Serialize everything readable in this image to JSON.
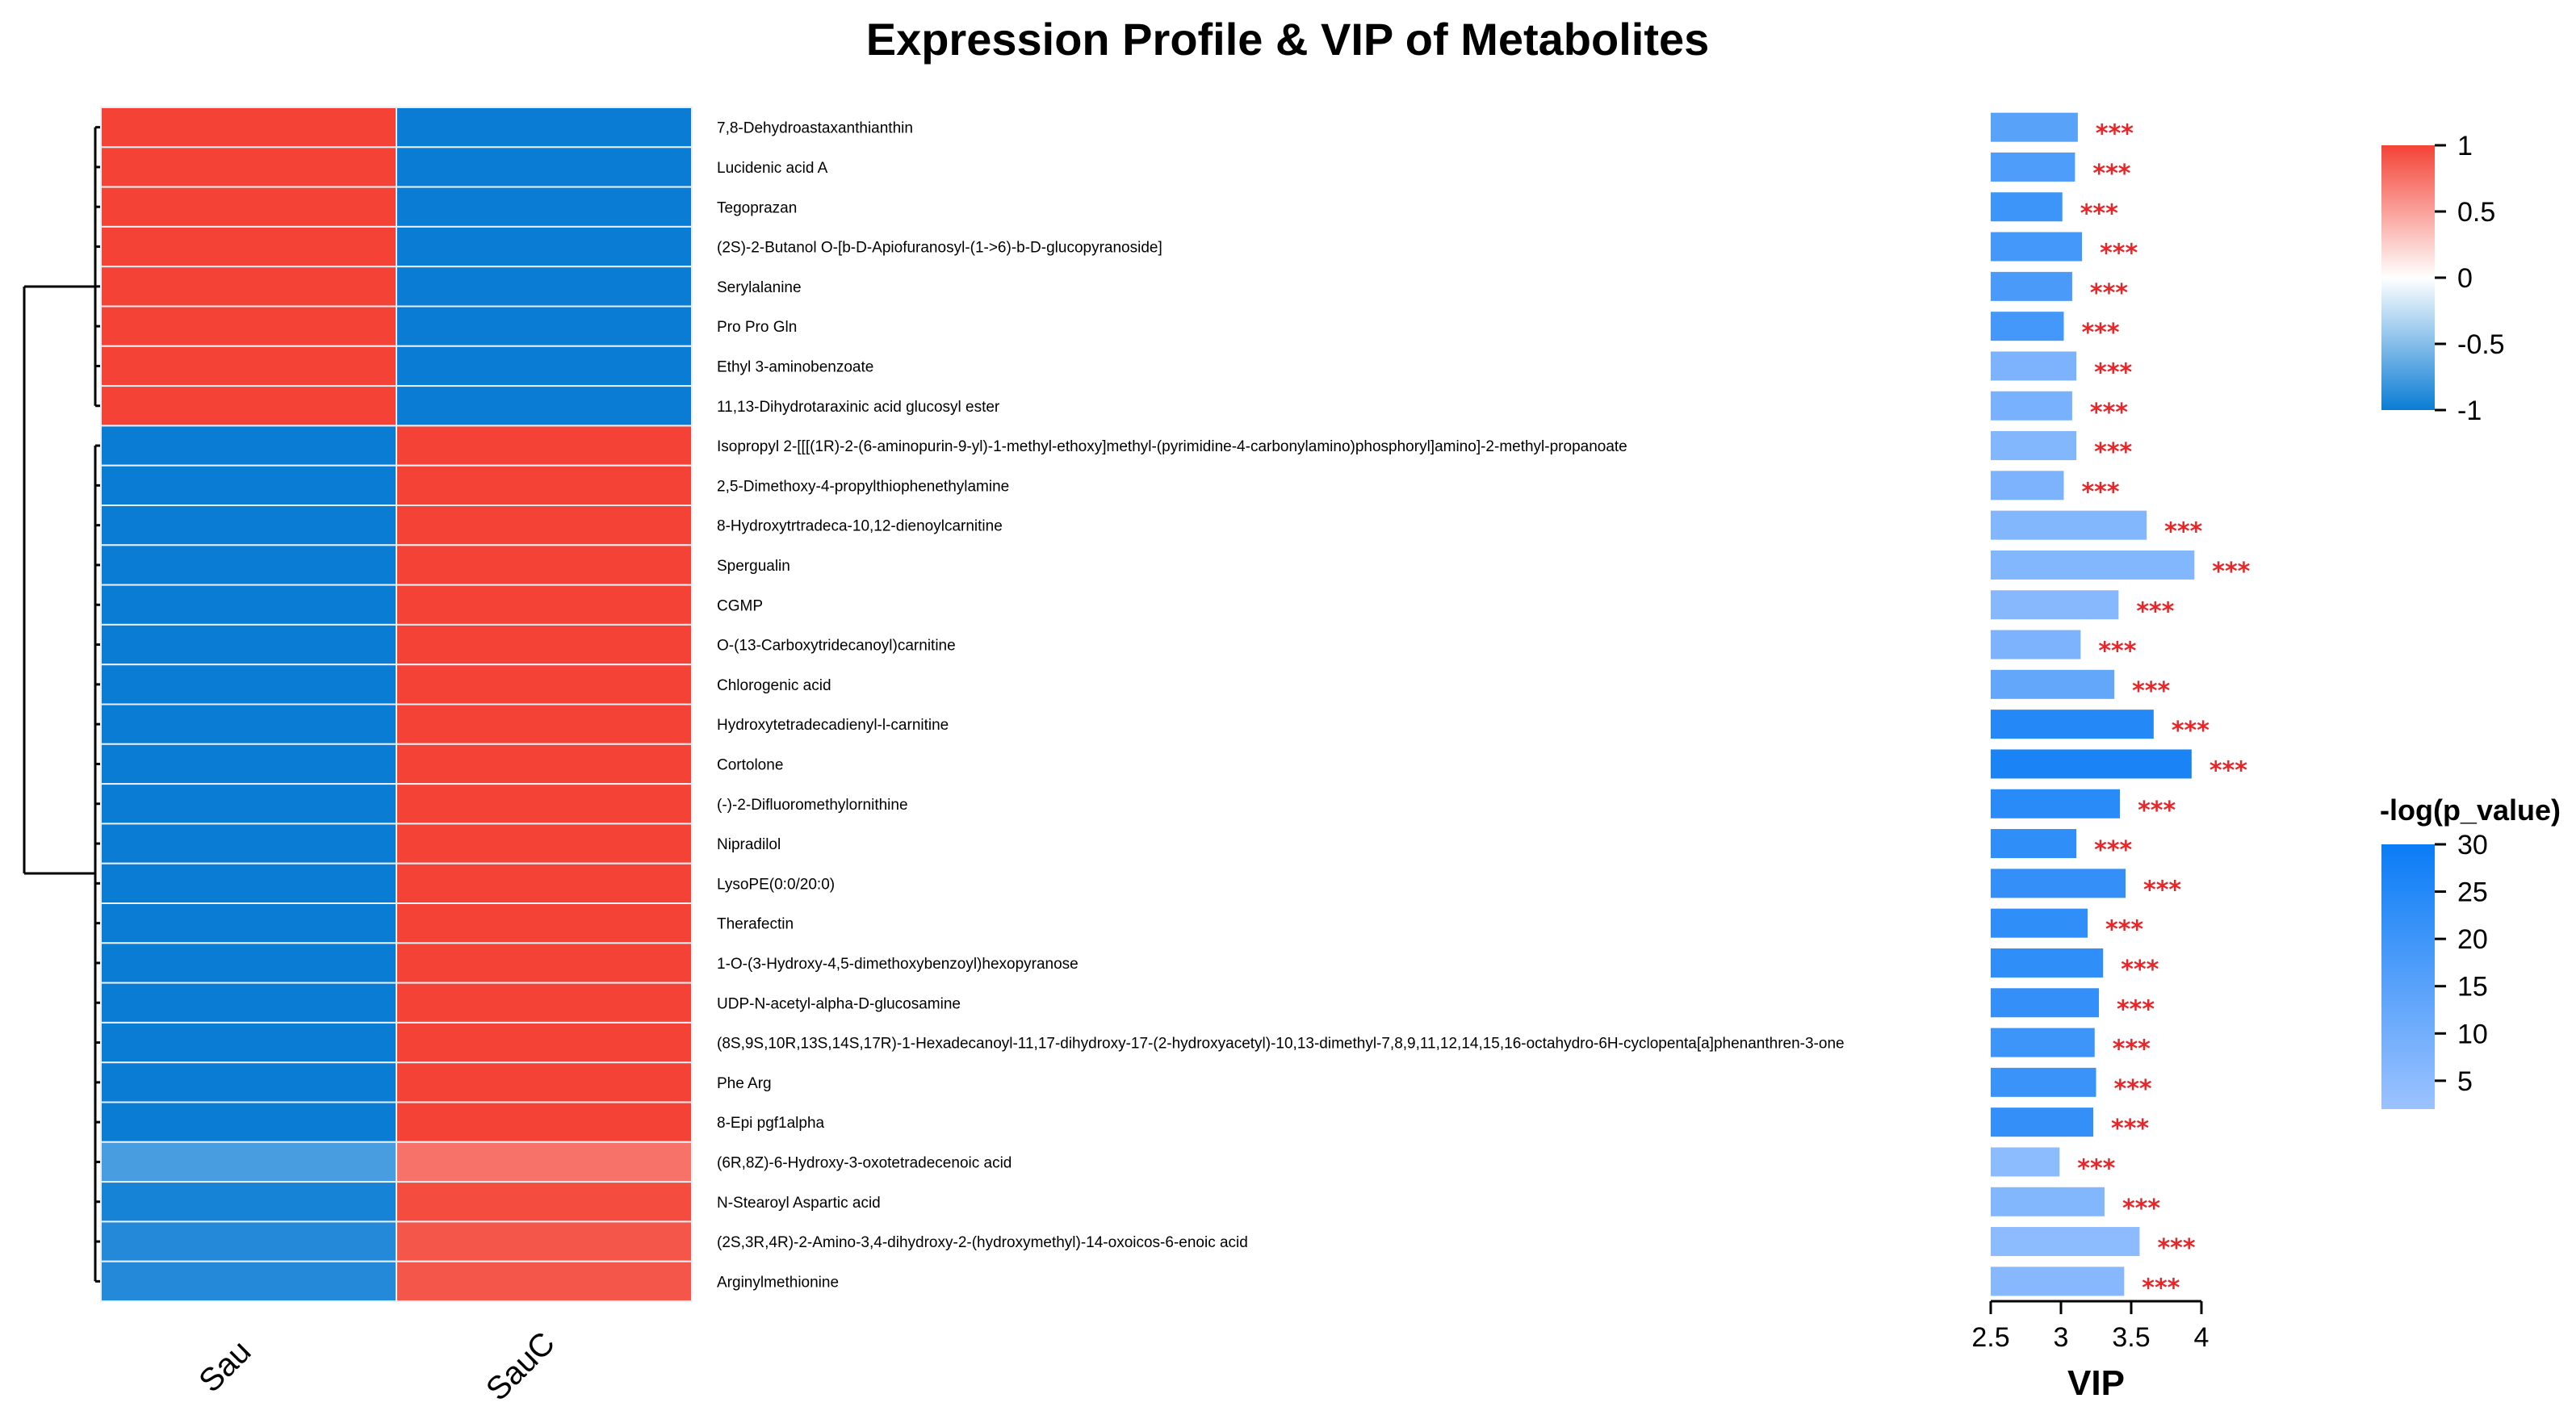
{
  "chart_data": {
    "type": "heatmap",
    "title": "Expression Profile & VIP of Metabolites",
    "groups": [
      "Sau",
      "SauC"
    ],
    "metabolites": [
      "7,8-Dehydroastaxanthianthin",
      "Lucidenic acid A",
      "Tegoprazan",
      "(2S)-2-Butanol O-[b-D-Apiofuranosyl-(1->6)-b-D-glucopyranoside]",
      "Serylalanine",
      "Pro Pro Gln",
      "Ethyl 3-aminobenzoate",
      "11,13-Dihydrotaraxinic acid glucosyl ester",
      "Isopropyl 2-[[[(1R)-2-(6-aminopurin-9-yl)-1-methyl-ethoxy]methyl-(pyrimidine-4-carbonylamino)phosphoryl]amino]-2-methyl-propanoate",
      "2,5-Dimethoxy-4-propylthiophenethylamine",
      "8-Hydroxytrtradeca-10,12-dienoylcarnitine",
      "Spergualin",
      "CGMP",
      "O-(13-Carboxytridecanoyl)carnitine",
      "Chlorogenic acid",
      "Hydroxytetradecadienyl-l-carnitine",
      "Cortolone",
      "(-)-2-Difluoromethylornithine",
      "Nipradilol",
      "LysoPE(0:0/20:0)",
      "Therafectin",
      "1-O-(3-Hydroxy-4,5-dimethoxybenzoyl)hexopyranose",
      "UDP-N-acetyl-alpha-D-glucosamine",
      "(8S,9S,10R,13S,14S,17R)-1-Hexadecanoyl-11,17-dihydroxy-17-(2-hydroxyacetyl)-10,13-dimethyl-7,8,9,11,12,14,15,16-octahydro-6H-cyclopenta[a]phenanthren-3-one",
      "Phe Arg",
      "8-Epi pgf1alpha",
      "(6R,8Z)-6-Hydroxy-3-oxotetradecenoic acid",
      "N-Stearoyl Aspartic acid",
      "(2S,3R,4R)-2-Amino-3,4-dihydroxy-2-(hydroxymethyl)-14-oxoicos-6-enoic acid",
      "Arginylmethionine"
    ],
    "heatmap_values": [
      [
        1,
        -1
      ],
      [
        1,
        -1
      ],
      [
        1,
        -1
      ],
      [
        1,
        -1
      ],
      [
        1,
        -1
      ],
      [
        1,
        -1
      ],
      [
        1,
        -1
      ],
      [
        1,
        -1
      ],
      [
        -1,
        1
      ],
      [
        -1,
        1
      ],
      [
        -1,
        1
      ],
      [
        -1,
        1
      ],
      [
        -1,
        1
      ],
      [
        -1,
        1
      ],
      [
        -1,
        1
      ],
      [
        -1,
        1
      ],
      [
        -1,
        1
      ],
      [
        -1,
        1
      ],
      [
        -1,
        1
      ],
      [
        -1,
        1
      ],
      [
        -1,
        1
      ],
      [
        -1,
        1
      ],
      [
        -1,
        1
      ],
      [
        -1,
        1
      ],
      [
        -1,
        1
      ],
      [
        -1,
        1
      ],
      [
        -0.75,
        0.75
      ],
      [
        -0.95,
        0.95
      ],
      [
        -0.9,
        0.9
      ],
      [
        -0.9,
        0.9
      ]
    ],
    "vip": [
      3.12,
      3.1,
      3.01,
      3.15,
      3.08,
      3.02,
      3.11,
      3.08,
      3.11,
      3.02,
      3.61,
      3.95,
      3.41,
      3.14,
      3.38,
      3.66,
      3.93,
      3.42,
      3.11,
      3.46,
      3.19,
      3.3,
      3.27,
      3.24,
      3.25,
      3.23,
      2.99,
      3.31,
      3.56,
      3.45
    ],
    "neg_log_p": [
      15,
      17,
      20,
      19,
      18,
      19,
      8,
      9,
      7,
      8,
      7,
      7,
      6,
      8,
      13,
      25,
      27,
      24,
      23,
      22,
      23,
      23,
      22,
      20,
      21,
      22,
      5,
      7,
      5,
      6
    ],
    "significance": [
      "***",
      "***",
      "***",
      "***",
      "***",
      "***",
      "***",
      "***",
      "***",
      "***",
      "***",
      "***",
      "***",
      "***",
      "***",
      "***",
      "***",
      "***",
      "***",
      "***",
      "***",
      "***",
      "***",
      "***",
      "***",
      "***",
      "***",
      "***",
      "***",
      "***"
    ],
    "vip_axis": {
      "label": "VIP",
      "range": [
        2.5,
        4
      ],
      "ticks": [
        "2.5",
        "3",
        "3.5",
        "4"
      ]
    },
    "color_legend": {
      "ticks": [
        "1",
        "0.5",
        "0",
        "-0.5",
        "-1"
      ],
      "high_color": "#f44336",
      "mid_color": "#ffffff",
      "low_color": "#0a7cd4"
    },
    "p_legend": {
      "title": "-log(p_value)",
      "ticks": [
        "30",
        "25",
        "20",
        "15",
        "10",
        "5"
      ],
      "range": [
        2,
        30
      ],
      "high_color": "#0a7cf5",
      "low_color": "#9cc2ff"
    }
  }
}
